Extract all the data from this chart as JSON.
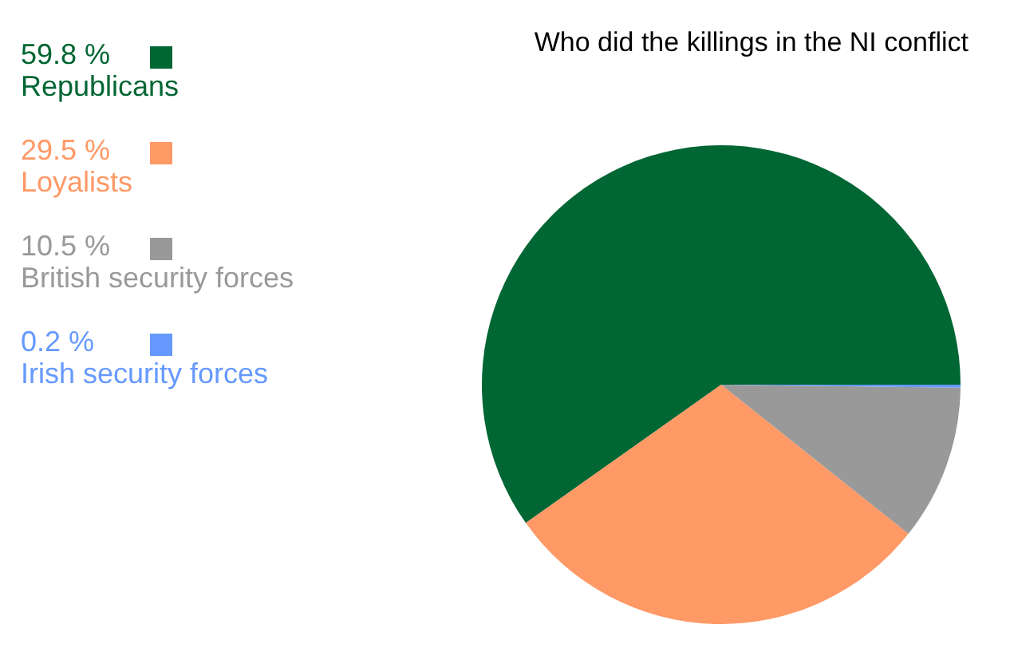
{
  "chart_data": {
    "type": "pie",
    "title": "Who did the killings in the NI conflict",
    "categories": [
      "Republicans",
      "Loyalists",
      "British security forces",
      "Irish security forces"
    ],
    "values": [
      59.8,
      29.5,
      10.5,
      0.2
    ],
    "value_labels": [
      "59.8 %",
      "29.5 %",
      "10.5 %",
      "0.2 %"
    ],
    "colors": [
      "#006633",
      "#ff9966",
      "#999999",
      "#6699ff"
    ],
    "legend": "left"
  }
}
